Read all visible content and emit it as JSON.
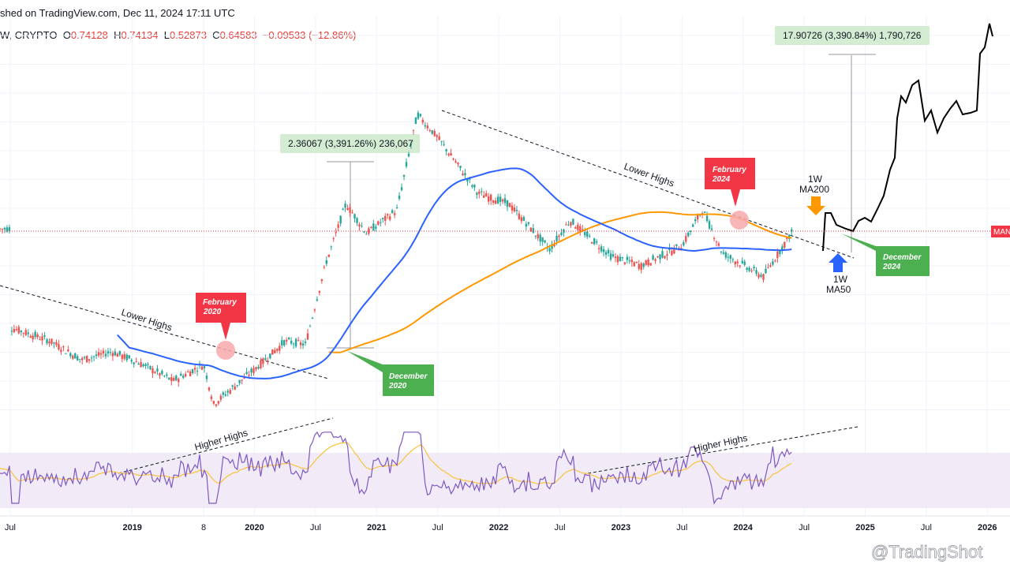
{
  "header": {
    "published": "shed on TradingView.com, Dec 11, 2024 17:11 UTC",
    "symbol": "W, CRYPTO",
    "o_label": "O",
    "o_value": "0.74128",
    "h_label": "H",
    "h_value": "0.74134",
    "l_label": "L",
    "l_value": "0.52873",
    "c_label": "C",
    "c_value": "0.64583",
    "change": "−0.09533 (−12.86%)"
  },
  "price_tag": "MAN",
  "watermark": "@TradingShot",
  "chart_data": {
    "type": "candlestick",
    "time_axis": {
      "labels": [
        "Jul",
        "2019",
        "8",
        "2020",
        "Jul",
        "2021",
        "Jul",
        "2022",
        "Jul",
        "2023",
        "Jul",
        "2024",
        "Jul",
        "2025",
        "Jul",
        "2026"
      ],
      "bold": [
        "2019",
        "2020",
        "2021",
        "2022",
        "2023",
        "2024",
        "2025",
        "2026"
      ],
      "range": [
        "2018-06",
        "2026-04"
      ]
    },
    "scale": "log",
    "price_series_weekly_close_approx": [
      [
        "2018-07",
        0.115
      ],
      [
        "2018-11",
        0.09
      ],
      [
        "2019-02",
        0.065
      ],
      [
        "2019-05",
        0.075
      ],
      [
        "2019-08",
        0.06
      ],
      [
        "2019-11",
        0.045
      ],
      [
        "2020-02",
        0.06
      ],
      [
        "2020-03",
        0.03
      ],
      [
        "2020-07",
        0.055
      ],
      [
        "2020-10",
        0.09
      ],
      [
        "2020-12",
        0.085
      ],
      [
        "2021-02",
        0.35
      ],
      [
        "2021-04",
        1.0
      ],
      [
        "2021-06",
        0.6
      ],
      [
        "2021-09",
        0.9
      ],
      [
        "2021-11",
        4.8
      ],
      [
        "2022-01",
        3.2
      ],
      [
        "2022-05",
        1.2
      ],
      [
        "2022-08",
        1.0
      ],
      [
        "2022-12",
        0.45
      ],
      [
        "2023-02",
        0.75
      ],
      [
        "2023-06",
        0.4
      ],
      [
        "2023-09",
        0.34
      ],
      [
        "2024-01",
        0.48
      ],
      [
        "2024-03",
        0.9
      ],
      [
        "2024-05",
        0.42
      ],
      [
        "2024-09",
        0.28
      ],
      [
        "2024-12",
        0.646
      ]
    ],
    "series": [
      {
        "name": "1W MA50",
        "color": "#2962ff"
      },
      {
        "name": "1W MA200",
        "color": "#ff9800"
      },
      {
        "name": "projection",
        "color": "#000000"
      }
    ],
    "annotations": {
      "feb2020": "February\n2020",
      "dec2020": "December\n2020",
      "feb2024": "February\n2024",
      "dec2024": "December\n2024",
      "lower_highs_1": "Lower Highs",
      "lower_highs_2": "Lower Highs",
      "higher_highs_1": "Higher Highs",
      "higher_highs_2": "Higher Highs",
      "ma200_label": "1W\nMA200",
      "ma50_label": "1W\nMA50",
      "measure_1": "2.36067 (3,391.26%) 236,067",
      "measure_2": "17.90726 (3,390.84%) 1,790,726"
    },
    "indicator": {
      "name": "RSI",
      "line_color": "#7e57c2",
      "signal_color": "#f9c23c",
      "band_color": "#ede7f6"
    },
    "colors": {
      "up": "#26a69a",
      "down": "#ef5350",
      "callout_red": "#f23645",
      "callout_green": "#4caf50",
      "measure_fill": "#d4ecd2"
    }
  }
}
